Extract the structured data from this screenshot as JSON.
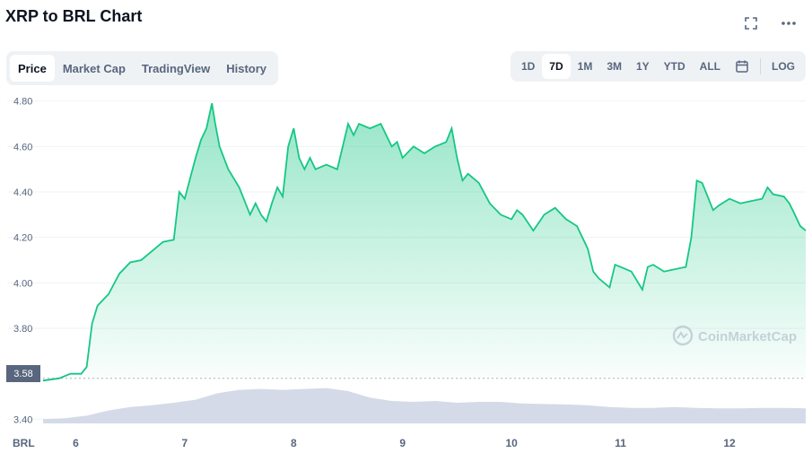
{
  "header": {
    "title": "XRP to BRL Chart",
    "expand_icon": "fullscreen-icon",
    "more_icon": "more-icon"
  },
  "tabs": [
    {
      "label": "Price",
      "active": true
    },
    {
      "label": "Market Cap",
      "active": false
    },
    {
      "label": "TradingView",
      "active": false
    },
    {
      "label": "History",
      "active": false
    }
  ],
  "ranges": [
    {
      "label": "1D",
      "active": false
    },
    {
      "label": "7D",
      "active": true
    },
    {
      "label": "1M",
      "active": false
    },
    {
      "label": "3M",
      "active": false
    },
    {
      "label": "1Y",
      "active": false
    },
    {
      "label": "YTD",
      "active": false
    },
    {
      "label": "ALL",
      "active": false
    }
  ],
  "calendar_icon": "calendar-icon",
  "log_label": "LOG",
  "current_value_label": "3.58",
  "colors": {
    "line": "#16c784",
    "below_baseline": "#ea3943",
    "volume": "#cfd6e4",
    "text_muted": "#58667e",
    "grid": "#eff2f5"
  },
  "chart_data": {
    "type": "area",
    "currency_label": "BRL",
    "y_ticks": [
      "3.40",
      "3.80",
      "4.00",
      "4.20",
      "4.40",
      "4.60",
      "4.80"
    ],
    "x_ticks": [
      "6",
      "7",
      "8",
      "9",
      "10",
      "11",
      "12"
    ],
    "ylim": [
      3.35,
      4.85
    ],
    "xlim": [
      5.7,
      12.7
    ],
    "baseline": 3.58,
    "watermark": "CoinMarketCap",
    "series": [
      {
        "x": [
          5.7,
          5.85,
          5.95,
          6.05,
          6.1,
          6.15,
          6.2,
          6.3,
          6.4,
          6.5,
          6.6,
          6.7,
          6.8,
          6.9,
          6.95,
          7.0,
          7.05,
          7.1,
          7.15,
          7.2,
          7.25,
          7.28,
          7.32,
          7.4,
          7.5,
          7.6,
          7.65,
          7.7,
          7.75,
          7.8,
          7.85,
          7.9,
          7.95,
          8.0,
          8.05,
          8.1,
          8.15,
          8.2,
          8.3,
          8.4,
          8.5,
          8.55,
          8.6,
          8.7,
          8.8,
          8.9,
          8.95,
          9.0,
          9.1,
          9.2,
          9.3,
          9.4,
          9.45,
          9.5,
          9.55,
          9.6,
          9.7,
          9.8,
          9.9,
          10.0,
          10.05,
          10.1,
          10.2,
          10.3,
          10.4,
          10.5,
          10.6,
          10.7,
          10.75,
          10.8,
          10.9,
          10.95,
          11.0,
          11.1,
          11.2,
          11.25,
          11.3,
          11.4,
          11.5,
          11.6,
          11.65,
          11.7,
          11.75,
          11.8,
          11.85,
          11.9,
          12.0,
          12.1,
          12.2,
          12.3,
          12.35,
          12.4,
          12.5,
          12.55,
          12.6,
          12.65,
          12.7
        ],
        "values": [
          3.57,
          3.58,
          3.6,
          3.6,
          3.63,
          3.82,
          3.9,
          3.95,
          4.04,
          4.09,
          4.1,
          4.14,
          4.18,
          4.19,
          4.4,
          4.37,
          4.46,
          4.55,
          4.63,
          4.68,
          4.79,
          4.7,
          4.6,
          4.5,
          4.42,
          4.3,
          4.35,
          4.3,
          4.27,
          4.35,
          4.42,
          4.38,
          4.6,
          4.68,
          4.55,
          4.5,
          4.55,
          4.5,
          4.52,
          4.5,
          4.7,
          4.65,
          4.7,
          4.68,
          4.7,
          4.6,
          4.62,
          4.55,
          4.6,
          4.57,
          4.6,
          4.62,
          4.68,
          4.55,
          4.45,
          4.48,
          4.44,
          4.35,
          4.3,
          4.28,
          4.32,
          4.3,
          4.23,
          4.3,
          4.33,
          4.28,
          4.25,
          4.15,
          4.05,
          4.02,
          3.98,
          4.08,
          4.07,
          4.05,
          3.97,
          4.07,
          4.08,
          4.05,
          4.06,
          4.07,
          4.2,
          4.45,
          4.44,
          4.38,
          4.32,
          4.34,
          4.37,
          4.35,
          4.36,
          4.37,
          4.42,
          4.39,
          4.38,
          4.35,
          4.3,
          4.25,
          4.23
        ]
      }
    ],
    "volume": {
      "x": [
        5.7,
        5.9,
        6.1,
        6.3,
        6.5,
        6.7,
        6.9,
        7.1,
        7.3,
        7.5,
        7.7,
        7.9,
        8.1,
        8.3,
        8.5,
        8.7,
        8.9,
        9.1,
        9.3,
        9.5,
        9.7,
        9.9,
        10.1,
        10.3,
        10.5,
        10.7,
        10.9,
        11.1,
        11.3,
        11.5,
        11.7,
        11.9,
        12.1,
        12.3,
        12.5,
        12.7
      ],
      "values": [
        0.1,
        0.12,
        0.18,
        0.3,
        0.38,
        0.42,
        0.48,
        0.55,
        0.7,
        0.78,
        0.8,
        0.78,
        0.8,
        0.82,
        0.75,
        0.6,
        0.52,
        0.5,
        0.52,
        0.48,
        0.5,
        0.5,
        0.46,
        0.45,
        0.44,
        0.42,
        0.38,
        0.36,
        0.36,
        0.38,
        0.36,
        0.35,
        0.35,
        0.36,
        0.36,
        0.35
      ]
    }
  }
}
